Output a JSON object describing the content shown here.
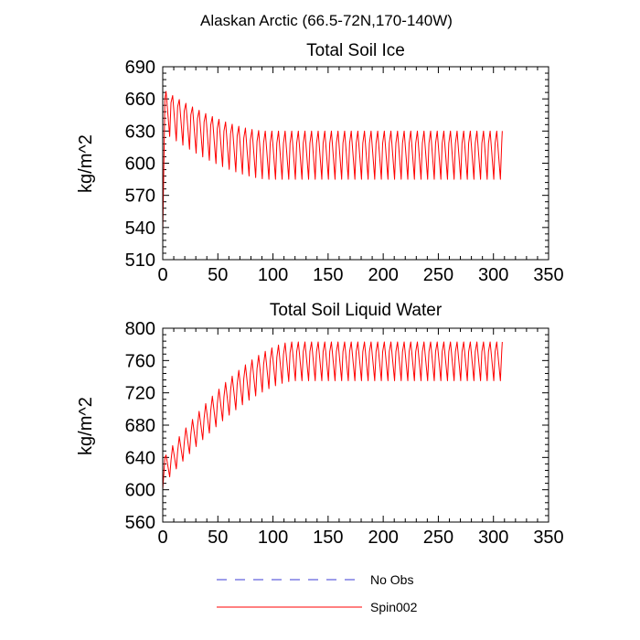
{
  "figure": {
    "title": "Alaskan Arctic (66.5-72N,170-140W)"
  },
  "legend": {
    "items": [
      {
        "label": "No Obs",
        "color": "#3b3bd6",
        "style": "dashed"
      },
      {
        "label": "Spin002",
        "color": "#ff0000",
        "style": "solid"
      }
    ]
  },
  "chart_data": [
    {
      "type": "line",
      "title": "Total Soil Ice",
      "xlabel": "",
      "ylabel": "kg/m^2",
      "xlim": [
        0,
        350
      ],
      "ylim": [
        510,
        690
      ],
      "xticks": [
        0,
        50,
        100,
        150,
        200,
        250,
        300,
        350
      ],
      "yticks": [
        510,
        540,
        570,
        600,
        630,
        660,
        690
      ],
      "grid": false,
      "series": [
        {
          "name": "Spin002",
          "color": "#ff0000",
          "generator": {
            "kind": "seasonal_cycle",
            "period": 6,
            "x_start": 0,
            "x_end": 308,
            "start_value": 535,
            "rise_to": 660,
            "initial_peak": 667,
            "initial_trough": 625,
            "final_peak": 630,
            "final_trough": 585,
            "relax_cycles": 15
          }
        },
        {
          "name": "No Obs",
          "color": "#3b3bd6",
          "values": []
        }
      ]
    },
    {
      "type": "line",
      "title": "Total Soil Liquid Water",
      "xlabel": "",
      "ylabel": "kg/m^2",
      "xlim": [
        0,
        350
      ],
      "ylim": [
        560,
        800
      ],
      "xticks": [
        0,
        50,
        100,
        150,
        200,
        250,
        300,
        350
      ],
      "yticks": [
        560,
        600,
        640,
        680,
        720,
        760,
        800
      ],
      "grid": false,
      "series": [
        {
          "name": "Spin002",
          "color": "#ff0000",
          "generator": {
            "kind": "seasonal_cycle",
            "period": 6,
            "x_start": 0,
            "x_end": 308,
            "start_value": 600,
            "rise_to": 640,
            "initial_peak": 643,
            "initial_trough": 616,
            "final_peak": 783,
            "final_trough": 735,
            "relax_cycles": 19
          }
        },
        {
          "name": "No Obs",
          "color": "#3b3bd6",
          "values": []
        }
      ]
    }
  ]
}
